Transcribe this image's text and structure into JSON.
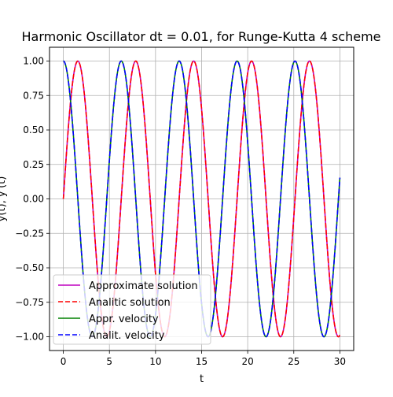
{
  "chart_data": {
    "type": "line",
    "title": "Harmonic Oscillator dt = 0.01, for Runge-Kutta 4 scheme",
    "xlabel": "t",
    "ylabel": "y(t), y'(t)",
    "xlim": [
      -1.5,
      31.5
    ],
    "ylim": [
      -1.1,
      1.1
    ],
    "xticks": [
      0,
      5,
      10,
      15,
      20,
      25,
      30
    ],
    "xtick_labels": [
      "0",
      "5",
      "10",
      "15",
      "20",
      "25",
      "30"
    ],
    "yticks": [
      -1.0,
      -0.75,
      -0.5,
      -0.25,
      0.0,
      0.25,
      0.5,
      0.75,
      1.0
    ],
    "ytick_labels": [
      "−1.00",
      "−0.75",
      "−0.50",
      "−0.25",
      "0.00",
      "0.25",
      "0.50",
      "0.75",
      "1.00"
    ],
    "grid": true,
    "legend_position": "lower-left",
    "t_range": [
      0,
      30
    ],
    "dt": 0.01,
    "series": [
      {
        "name": "Approximate solution",
        "function": "sin(t)",
        "color": "#bf00bf",
        "style": "solid"
      },
      {
        "name": "Analitic solution",
        "function": "sin(t)",
        "color": "#ff0000",
        "style": "dashed"
      },
      {
        "name": "Appr. velocity",
        "function": "cos(t)",
        "color": "#008000",
        "style": "solid"
      },
      {
        "name": "Analit. velocity",
        "function": "cos(t)",
        "color": "#0000ff",
        "style": "dashed"
      }
    ]
  }
}
